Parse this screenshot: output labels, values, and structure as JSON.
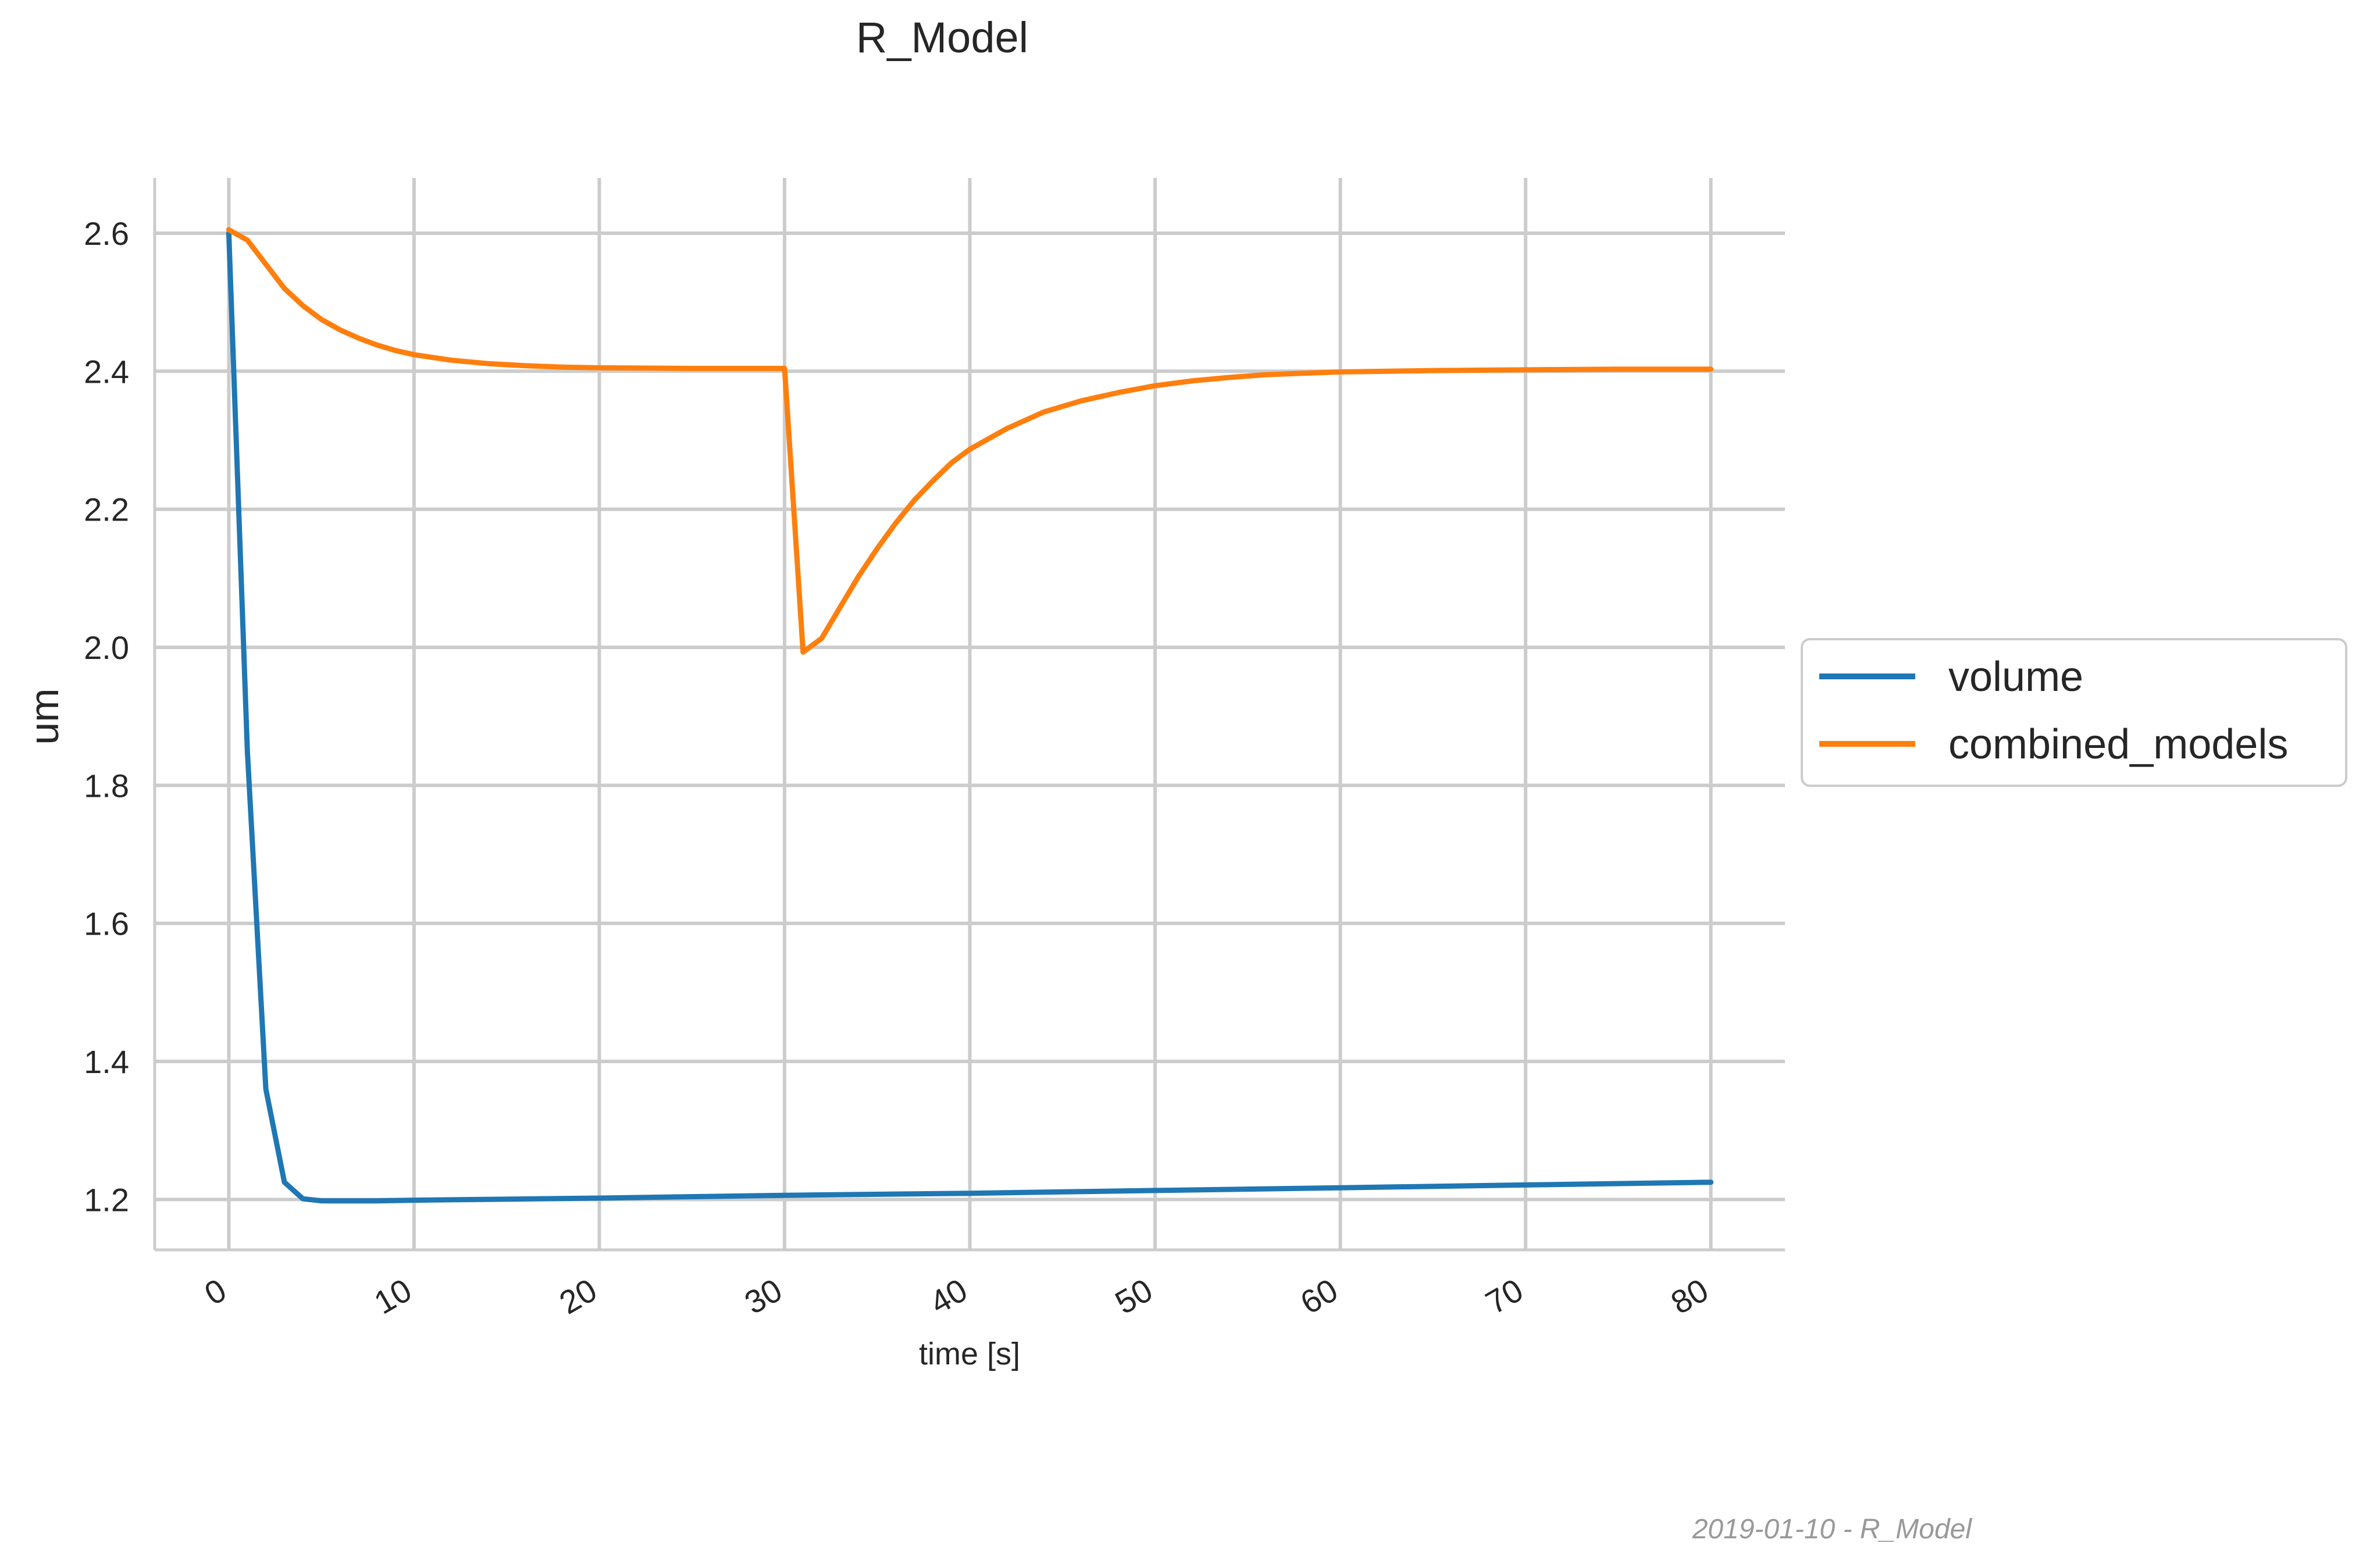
{
  "chart_data": {
    "type": "line",
    "title": "R_Model",
    "xlabel": "time [s]",
    "ylabel": "um",
    "xlim": [
      -4,
      84
    ],
    "ylim": [
      1.127,
      2.68
    ],
    "x_ticks": [
      0,
      10,
      20,
      30,
      40,
      50,
      60,
      70,
      80
    ],
    "x_tick_labels": [
      "0",
      "10",
      "20",
      "30",
      "40",
      "50",
      "60",
      "70",
      "80"
    ],
    "y_ticks": [
      1.2,
      1.4,
      1.6,
      1.8,
      2.0,
      2.2,
      2.4,
      2.6
    ],
    "y_tick_labels": [
      "1.2",
      "1.4",
      "1.6",
      "1.8",
      "2.0",
      "2.2",
      "2.4",
      "2.6"
    ],
    "grid": true,
    "legend_position": "center-right-outside",
    "series": [
      {
        "name": "volume",
        "color": "#1f77b4",
        "x": [
          0,
          1,
          2,
          3,
          4,
          5,
          6,
          8,
          10,
          20,
          30,
          40,
          50,
          60,
          70,
          80
        ],
        "y": [
          2.6,
          1.85,
          1.36,
          1.225,
          1.201,
          1.198,
          1.198,
          1.198,
          1.199,
          1.202,
          1.206,
          1.209,
          1.213,
          1.217,
          1.221,
          1.225
        ]
      },
      {
        "name": "combined_models",
        "color": "#ff7f0e",
        "x": [
          0,
          1,
          2,
          3,
          4,
          5,
          6,
          7,
          8,
          9,
          10,
          12,
          14,
          16,
          18,
          20,
          25,
          30,
          31,
          32,
          33,
          34,
          35,
          36,
          37,
          38,
          39,
          40,
          42,
          44,
          46,
          48,
          50,
          52,
          54,
          56,
          58,
          60,
          65,
          70,
          75,
          80
        ],
        "y": [
          2.605,
          2.59,
          2.555,
          2.52,
          2.495,
          2.475,
          2.46,
          2.448,
          2.438,
          2.43,
          2.424,
          2.416,
          2.411,
          2.408,
          2.406,
          2.405,
          2.404,
          2.404,
          1.993,
          2.013,
          2.058,
          2.103,
          2.143,
          2.18,
          2.213,
          2.241,
          2.267,
          2.287,
          2.317,
          2.341,
          2.357,
          2.369,
          2.379,
          2.386,
          2.391,
          2.395,
          2.397,
          2.399,
          2.401,
          2.402,
          2.403,
          2.403
        ]
      }
    ]
  },
  "footer": {
    "text": "2019-01-10 - R_Model"
  }
}
